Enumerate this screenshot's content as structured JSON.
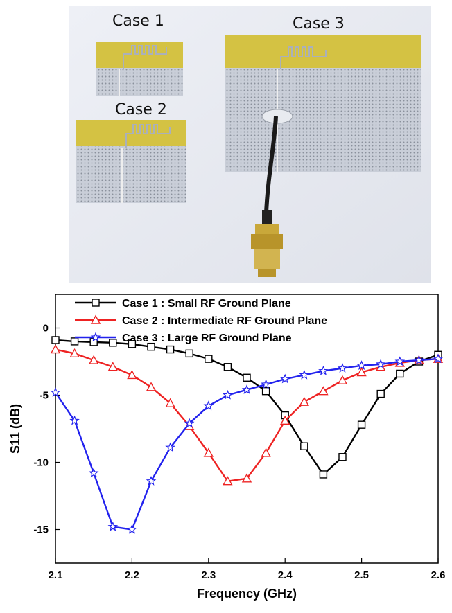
{
  "photo": {
    "labels": [
      "Case 1",
      "Case 2",
      "Case 3"
    ]
  },
  "chart_data": {
    "type": "line",
    "xlabel": "Frequency (GHz)",
    "ylabel": "S11 (dB)",
    "xlim": [
      2.1,
      2.6
    ],
    "ylim": [
      -17.5,
      2.5
    ],
    "xticks": [
      2.1,
      2.2,
      2.3,
      2.4,
      2.5,
      2.6
    ],
    "xtick_labels": [
      "2.1",
      "2.2",
      "2.3",
      "2.4",
      "2.5",
      "2.6"
    ],
    "yticks": [
      0,
      -5,
      -10,
      -15
    ],
    "ytick_labels": [
      "0",
      "-5",
      "-10",
      "-15"
    ],
    "grid": false,
    "legend_position": "top-left",
    "series": [
      {
        "name": "Case 1 : Small RF Ground Plane",
        "color": "#000000",
        "marker": "square",
        "x": [
          2.1,
          2.125,
          2.15,
          2.175,
          2.2,
          2.225,
          2.25,
          2.275,
          2.3,
          2.325,
          2.35,
          2.375,
          2.4,
          2.425,
          2.45,
          2.475,
          2.5,
          2.525,
          2.55,
          2.575,
          2.6
        ],
        "y": [
          -0.9,
          -1.0,
          -1.05,
          -1.1,
          -1.2,
          -1.4,
          -1.6,
          -1.9,
          -2.3,
          -2.9,
          -3.7,
          -4.7,
          -6.5,
          -8.8,
          -10.9,
          -9.6,
          -7.2,
          -4.9,
          -3.4,
          -2.5,
          -2.0
        ]
      },
      {
        "name": "Case 2 : Intermediate RF Ground Plane",
        "color": "#ee2222",
        "marker": "triangle",
        "x": [
          2.1,
          2.125,
          2.15,
          2.175,
          2.2,
          2.225,
          2.25,
          2.275,
          2.3,
          2.325,
          2.35,
          2.375,
          2.4,
          2.425,
          2.45,
          2.475,
          2.5,
          2.525,
          2.55,
          2.575,
          2.6
        ],
        "y": [
          -1.6,
          -1.9,
          -2.4,
          -2.9,
          -3.5,
          -4.4,
          -5.6,
          -7.3,
          -9.3,
          -11.4,
          -11.2,
          -9.3,
          -6.9,
          -5.5,
          -4.7,
          -3.9,
          -3.3,
          -2.9,
          -2.6,
          -2.4,
          -2.3
        ]
      },
      {
        "name": "Case 3 : Large RF Ground Plane",
        "color": "#2222ee",
        "marker": "star",
        "x": [
          2.1,
          2.125,
          2.15,
          2.175,
          2.2,
          2.225,
          2.25,
          2.275,
          2.3,
          2.325,
          2.35,
          2.375,
          2.4,
          2.425,
          2.45,
          2.475,
          2.5,
          2.525,
          2.55,
          2.575,
          2.6
        ],
        "y": [
          -4.8,
          -6.9,
          -10.8,
          -14.8,
          -15.0,
          -11.4,
          -8.9,
          -7.1,
          -5.8,
          -5.0,
          -4.6,
          -4.2,
          -3.8,
          -3.5,
          -3.2,
          -3.0,
          -2.8,
          -2.7,
          -2.5,
          -2.4,
          -2.3
        ]
      }
    ]
  }
}
